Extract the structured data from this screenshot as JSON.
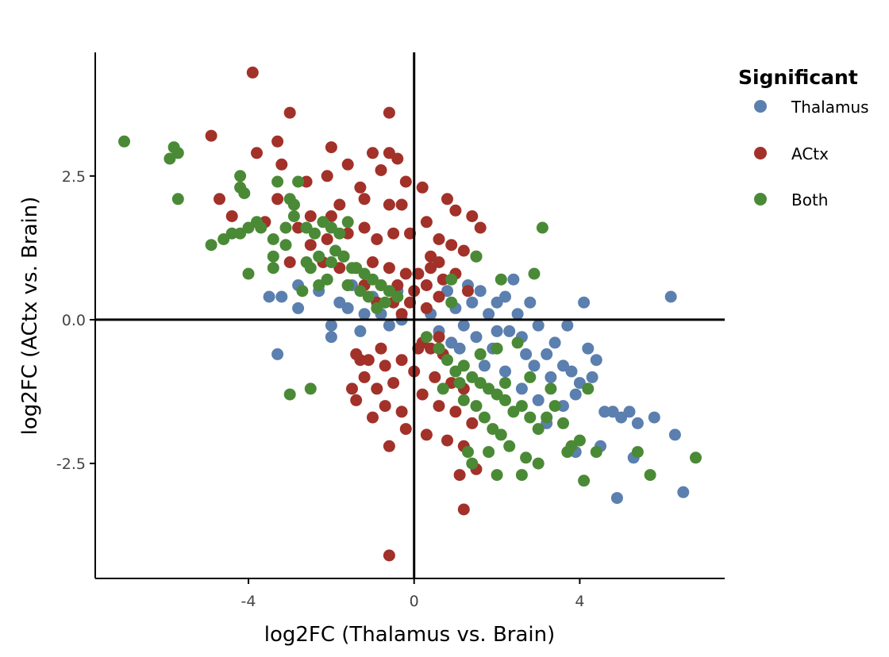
{
  "chart_data": {
    "type": "scatter",
    "xlabel": "log2FC (Thalamus vs. Brain)",
    "ylabel": "log2FC (ACtx vs. Brain)",
    "xlim": [
      -7.7,
      7.5
    ],
    "ylim": [
      -4.5,
      4.65
    ],
    "x_ticks": [
      {
        "value": -4,
        "label": "-4"
      },
      {
        "value": 0,
        "label": "0"
      },
      {
        "value": 4,
        "label": "4"
      }
    ],
    "y_ticks": [
      {
        "value": 2.5,
        "label": "2.5"
      },
      {
        "value": 0,
        "label": "0.0"
      },
      {
        "value": -2.5,
        "label": "-2.5"
      }
    ],
    "reference_lines": {
      "x": 0,
      "y": 0
    },
    "grid": false,
    "legend": {
      "title": "Significant",
      "position": "top-right"
    },
    "series": [
      {
        "name": "Thalamus",
        "color": "#5b7fae",
        "points": [
          [
            -2.0,
            -0.3
          ],
          [
            -2.0,
            -0.1
          ],
          [
            -1.8,
            0.3
          ],
          [
            -1.5,
            0.6
          ],
          [
            -1.3,
            -0.2
          ],
          [
            -1.2,
            0.1
          ],
          [
            -1.0,
            0.4
          ],
          [
            -0.8,
            0.1
          ],
          [
            -0.6,
            -0.1
          ],
          [
            -0.4,
            0.5
          ],
          [
            -0.3,
            0.0
          ],
          [
            -1.6,
            0.2
          ],
          [
            -2.3,
            0.5
          ],
          [
            -3.3,
            -0.6
          ],
          [
            -2.8,
            0.6
          ],
          [
            -3.2,
            0.4
          ],
          [
            -2.8,
            0.2
          ],
          [
            -3.5,
            0.4
          ],
          [
            0.4,
            0.1
          ],
          [
            0.6,
            -0.2
          ],
          [
            0.8,
            0.5
          ],
          [
            1.0,
            0.2
          ],
          [
            1.2,
            -0.1
          ],
          [
            1.4,
            0.3
          ],
          [
            1.6,
            0.5
          ],
          [
            1.8,
            0.1
          ],
          [
            2.0,
            -0.2
          ],
          [
            2.2,
            0.4
          ],
          [
            2.4,
            0.7
          ],
          [
            2.5,
            0.1
          ],
          [
            2.6,
            -0.3
          ],
          [
            2.8,
            0.3
          ],
          [
            3.0,
            -0.1
          ],
          [
            3.2,
            -0.6
          ],
          [
            3.4,
            -0.4
          ],
          [
            3.6,
            -0.8
          ],
          [
            3.8,
            -0.9
          ],
          [
            4.0,
            -1.1
          ],
          [
            4.2,
            -0.5
          ],
          [
            4.4,
            -0.7
          ],
          [
            4.6,
            -1.6
          ],
          [
            4.8,
            -1.6
          ],
          [
            5.0,
            -1.7
          ],
          [
            5.2,
            -1.6
          ],
          [
            5.4,
            -1.8
          ],
          [
            5.8,
            -1.7
          ],
          [
            6.3,
            -2.0
          ],
          [
            6.5,
            -3.0
          ],
          [
            6.2,
            0.4
          ],
          [
            4.1,
            0.3
          ],
          [
            3.7,
            -0.1
          ],
          [
            2.9,
            -0.8
          ],
          [
            2.6,
            -1.2
          ],
          [
            2.2,
            -0.9
          ],
          [
            1.9,
            -0.5
          ],
          [
            1.5,
            -0.3
          ],
          [
            1.1,
            -0.5
          ],
          [
            0.9,
            -0.4
          ],
          [
            4.9,
            -3.1
          ],
          [
            5.3,
            -2.4
          ],
          [
            4.5,
            -2.2
          ],
          [
            3.9,
            -2.3
          ],
          [
            3.2,
            -1.8
          ],
          [
            3.6,
            -1.5
          ],
          [
            3.0,
            -1.4
          ],
          [
            2.7,
            -0.6
          ],
          [
            2.3,
            -0.2
          ],
          [
            1.7,
            -0.8
          ],
          [
            1.3,
            0.6
          ],
          [
            2.0,
            0.3
          ],
          [
            3.3,
            -1.0
          ],
          [
            3.9,
            -1.3
          ],
          [
            4.3,
            -1.0
          ]
        ]
      },
      {
        "name": "ACtx",
        "color": "#a23129",
        "points": [
          [
            -3.9,
            4.3
          ],
          [
            -3.0,
            3.6
          ],
          [
            -0.6,
            3.6
          ],
          [
            -4.9,
            3.2
          ],
          [
            -3.3,
            3.1
          ],
          [
            -3.8,
            2.9
          ],
          [
            -2.0,
            3.0
          ],
          [
            -1.0,
            2.9
          ],
          [
            -0.6,
            2.9
          ],
          [
            -0.4,
            2.8
          ],
          [
            -3.2,
            2.7
          ],
          [
            -1.6,
            2.7
          ],
          [
            -0.8,
            2.6
          ],
          [
            -0.2,
            2.4
          ],
          [
            0.2,
            2.3
          ],
          [
            -2.1,
            2.5
          ],
          [
            -2.6,
            2.4
          ],
          [
            -1.3,
            2.3
          ],
          [
            -4.7,
            2.1
          ],
          [
            -3.3,
            2.1
          ],
          [
            -2.9,
            2.0
          ],
          [
            -1.8,
            2.0
          ],
          [
            -1.2,
            2.1
          ],
          [
            -0.6,
            2.0
          ],
          [
            -0.3,
            2.0
          ],
          [
            0.8,
            2.1
          ],
          [
            1.0,
            1.9
          ],
          [
            1.4,
            1.8
          ],
          [
            1.6,
            1.6
          ],
          [
            -4.4,
            1.8
          ],
          [
            -3.6,
            1.7
          ],
          [
            -2.8,
            1.6
          ],
          [
            -2.5,
            1.3
          ],
          [
            -2.1,
            1.4
          ],
          [
            -1.6,
            1.5
          ],
          [
            -1.2,
            1.6
          ],
          [
            -0.9,
            1.4
          ],
          [
            -0.5,
            1.5
          ],
          [
            -0.1,
            1.5
          ],
          [
            0.3,
            1.7
          ],
          [
            0.6,
            1.4
          ],
          [
            0.9,
            1.3
          ],
          [
            1.2,
            1.2
          ],
          [
            1.5,
            1.1
          ],
          [
            -3.0,
            1.0
          ],
          [
            -2.2,
            1.0
          ],
          [
            -1.8,
            0.9
          ],
          [
            -1.4,
            0.9
          ],
          [
            -1.0,
            1.0
          ],
          [
            -0.6,
            0.9
          ],
          [
            -0.2,
            0.8
          ],
          [
            0.1,
            0.8
          ],
          [
            0.4,
            0.9
          ],
          [
            0.7,
            0.7
          ],
          [
            1.0,
            0.8
          ],
          [
            -1.6,
            0.6
          ],
          [
            -1.2,
            0.6
          ],
          [
            -0.8,
            0.6
          ],
          [
            -0.4,
            0.6
          ],
          [
            0.0,
            0.5
          ],
          [
            0.3,
            0.6
          ],
          [
            0.6,
            0.4
          ],
          [
            -0.9,
            0.3
          ],
          [
            -0.5,
            0.3
          ],
          [
            -0.1,
            0.3
          ],
          [
            0.3,
            0.2
          ],
          [
            0.1,
            -0.5
          ],
          [
            0.4,
            -0.5
          ],
          [
            0.7,
            -0.6
          ],
          [
            -0.3,
            -0.7
          ],
          [
            -0.7,
            -0.8
          ],
          [
            -1.1,
            -0.7
          ],
          [
            -1.4,
            -0.6
          ],
          [
            0.0,
            -0.9
          ],
          [
            0.5,
            -1.0
          ],
          [
            0.9,
            -1.1
          ],
          [
            1.2,
            -1.2
          ],
          [
            -0.5,
            -1.1
          ],
          [
            -0.9,
            -1.2
          ],
          [
            -1.2,
            -1.0
          ],
          [
            -1.5,
            -1.2
          ],
          [
            0.2,
            -1.3
          ],
          [
            0.6,
            -1.5
          ],
          [
            1.0,
            -1.6
          ],
          [
            1.4,
            -1.8
          ],
          [
            -0.3,
            -1.6
          ],
          [
            -0.7,
            -1.5
          ],
          [
            -1.0,
            -1.7
          ],
          [
            -1.4,
            -1.4
          ],
          [
            -0.2,
            -1.9
          ],
          [
            0.3,
            -2.0
          ],
          [
            0.8,
            -2.1
          ],
          [
            1.2,
            -2.2
          ],
          [
            -0.6,
            -2.2
          ],
          [
            1.1,
            -2.7
          ],
          [
            1.5,
            -2.6
          ],
          [
            1.2,
            -3.3
          ],
          [
            -0.6,
            -4.1
          ],
          [
            -1.3,
            -0.7
          ],
          [
            -0.8,
            -0.5
          ],
          [
            0.2,
            -0.4
          ],
          [
            0.6,
            -0.3
          ],
          [
            -0.3,
            0.1
          ],
          [
            -1.7,
            1.1
          ],
          [
            -2.5,
            1.8
          ],
          [
            -2.0,
            1.8
          ],
          [
            0.4,
            1.1
          ],
          [
            0.6,
            1.0
          ],
          [
            1.3,
            0.5
          ]
        ]
      },
      {
        "name": "Both",
        "color": "#4a8a36",
        "points": [
          [
            -7.0,
            3.1
          ],
          [
            -5.9,
            2.8
          ],
          [
            -5.8,
            3.0
          ],
          [
            -5.7,
            2.9
          ],
          [
            -5.7,
            2.1
          ],
          [
            -4.2,
            2.5
          ],
          [
            -4.2,
            2.3
          ],
          [
            -4.1,
            2.2
          ],
          [
            -3.0,
            2.1
          ],
          [
            -2.9,
            2.0
          ],
          [
            -2.8,
            2.4
          ],
          [
            -4.9,
            1.3
          ],
          [
            -4.6,
            1.4
          ],
          [
            -4.4,
            1.5
          ],
          [
            -4.2,
            1.5
          ],
          [
            -4.0,
            1.6
          ],
          [
            -3.8,
            1.7
          ],
          [
            -3.7,
            1.6
          ],
          [
            -3.4,
            1.4
          ],
          [
            -3.1,
            1.3
          ],
          [
            -2.9,
            1.8
          ],
          [
            -2.6,
            1.6
          ],
          [
            -2.4,
            1.5
          ],
          [
            -2.2,
            1.7
          ],
          [
            -2.0,
            1.6
          ],
          [
            -1.8,
            1.5
          ],
          [
            -1.6,
            1.7
          ],
          [
            -3.4,
            1.1
          ],
          [
            -3.4,
            0.9
          ],
          [
            -4.0,
            0.8
          ],
          [
            -2.6,
            1.0
          ],
          [
            -2.3,
            1.1
          ],
          [
            -2.0,
            1.0
          ],
          [
            -1.7,
            1.1
          ],
          [
            -1.4,
            0.9
          ],
          [
            -1.2,
            0.8
          ],
          [
            -1.0,
            0.7
          ],
          [
            -0.8,
            0.6
          ],
          [
            -0.6,
            0.5
          ],
          [
            -0.4,
            0.4
          ],
          [
            -2.1,
            0.7
          ],
          [
            -1.6,
            0.6
          ],
          [
            -1.3,
            0.5
          ],
          [
            -1.1,
            0.4
          ],
          [
            -0.7,
            0.3
          ],
          [
            -2.7,
            0.5
          ],
          [
            -2.3,
            0.6
          ],
          [
            0.3,
            -0.3
          ],
          [
            0.6,
            -0.5
          ],
          [
            0.8,
            -0.7
          ],
          [
            1.0,
            -0.9
          ],
          [
            1.2,
            -0.8
          ],
          [
            1.4,
            -1.0
          ],
          [
            1.6,
            -1.1
          ],
          [
            1.8,
            -1.2
          ],
          [
            2.0,
            -1.3
          ],
          [
            2.2,
            -1.4
          ],
          [
            2.4,
            -1.6
          ],
          [
            2.6,
            -1.5
          ],
          [
            2.8,
            -1.7
          ],
          [
            3.0,
            -1.9
          ],
          [
            3.2,
            -1.7
          ],
          [
            3.4,
            -1.5
          ],
          [
            3.6,
            -1.8
          ],
          [
            3.8,
            -2.2
          ],
          [
            4.0,
            -2.1
          ],
          [
            4.2,
            -1.2
          ],
          [
            1.2,
            -1.4
          ],
          [
            1.5,
            -1.5
          ],
          [
            1.7,
            -1.7
          ],
          [
            1.9,
            -1.9
          ],
          [
            2.1,
            -2.0
          ],
          [
            2.3,
            -2.2
          ],
          [
            1.3,
            -2.3
          ],
          [
            1.8,
            -2.3
          ],
          [
            2.7,
            -2.4
          ],
          [
            3.0,
            -2.5
          ],
          [
            1.4,
            -2.5
          ],
          [
            2.0,
            -2.7
          ],
          [
            2.6,
            -2.7
          ],
          [
            4.1,
            -2.8
          ],
          [
            3.7,
            -2.3
          ],
          [
            4.4,
            -2.3
          ],
          [
            5.4,
            -2.3
          ],
          [
            5.7,
            -2.7
          ],
          [
            6.8,
            -2.4
          ],
          [
            3.1,
            1.6
          ],
          [
            2.9,
            0.8
          ],
          [
            2.1,
            0.7
          ],
          [
            1.5,
            1.1
          ],
          [
            0.9,
            0.7
          ],
          [
            0.9,
            0.3
          ],
          [
            2.5,
            -0.4
          ],
          [
            2.0,
            -0.5
          ],
          [
            1.6,
            -0.6
          ],
          [
            -3.0,
            -1.3
          ],
          [
            -2.5,
            -1.2
          ],
          [
            0.7,
            -1.2
          ],
          [
            1.1,
            -1.1
          ],
          [
            2.2,
            -1.1
          ],
          [
            3.3,
            -1.2
          ],
          [
            2.8,
            -1.0
          ],
          [
            -0.9,
            0.2
          ],
          [
            -1.5,
            0.9
          ],
          [
            -2.5,
            0.9
          ],
          [
            -1.9,
            1.2
          ],
          [
            -3.3,
            2.4
          ],
          [
            -3.1,
            1.6
          ]
        ]
      }
    ]
  }
}
